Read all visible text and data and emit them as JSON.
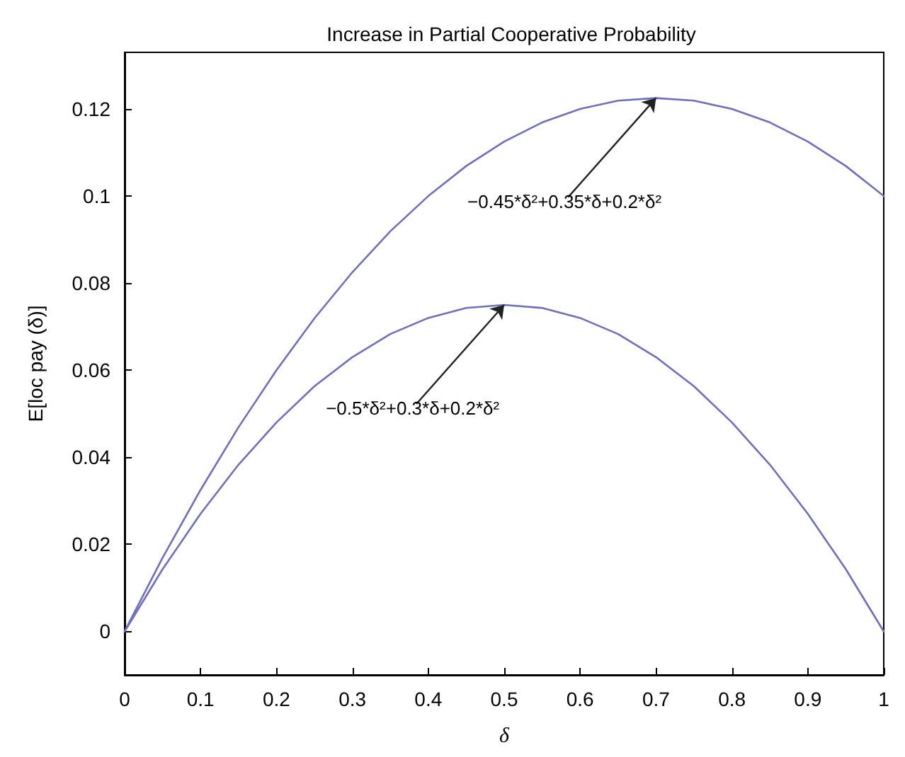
{
  "chart_data": {
    "type": "line",
    "title": "Increase in Partial Cooperative Probability",
    "xlabel": "δ",
    "ylabel": "E[loc pay (δ)]",
    "x": [
      0,
      0.05,
      0.1,
      0.15,
      0.2,
      0.25,
      0.3,
      0.35,
      0.4,
      0.45,
      0.5,
      0.55,
      0.6,
      0.65,
      0.7,
      0.75,
      0.8,
      0.85,
      0.9,
      0.95,
      1
    ],
    "series": [
      {
        "color": "#6f6fbf",
        "values": [
          0,
          0.0169,
          0.0325,
          0.0469,
          0.06,
          0.0719,
          0.0825,
          0.0919,
          0.1,
          0.1069,
          0.1125,
          0.1169,
          0.12,
          0.1219,
          0.1225,
          0.1219,
          0.12,
          0.1169,
          0.1125,
          0.1069,
          0.1
        ]
      },
      {
        "color": "#6f6fbf",
        "values": [
          0,
          0.0143,
          0.027,
          0.0383,
          0.048,
          0.0563,
          0.063,
          0.0683,
          0.072,
          0.0743,
          0.075,
          0.0743,
          0.072,
          0.0683,
          0.063,
          0.0563,
          0.048,
          0.0383,
          0.027,
          0.0143,
          0
        ]
      }
    ],
    "xlim": [
      0,
      1
    ],
    "xticks": [
      0,
      0.1,
      0.2,
      0.3,
      0.4,
      0.5,
      0.6,
      0.7,
      0.8,
      0.9,
      1
    ],
    "ylim": [
      -0.01,
      0.133
    ],
    "yticks": [
      0,
      0.02,
      0.04,
      0.06,
      0.08,
      0.1,
      0.12
    ],
    "grid": false,
    "marker": "none",
    "line_style": "solid",
    "annotations": [
      {
        "text": "−0.45*δ²+0.35*δ+0.2*δ²",
        "x": 0.7,
        "y": 0.1225
      },
      {
        "text": "−0.5*δ²+0.3*δ+0.2*δ²",
        "x": 0.5,
        "y": 0.075
      }
    ]
  }
}
